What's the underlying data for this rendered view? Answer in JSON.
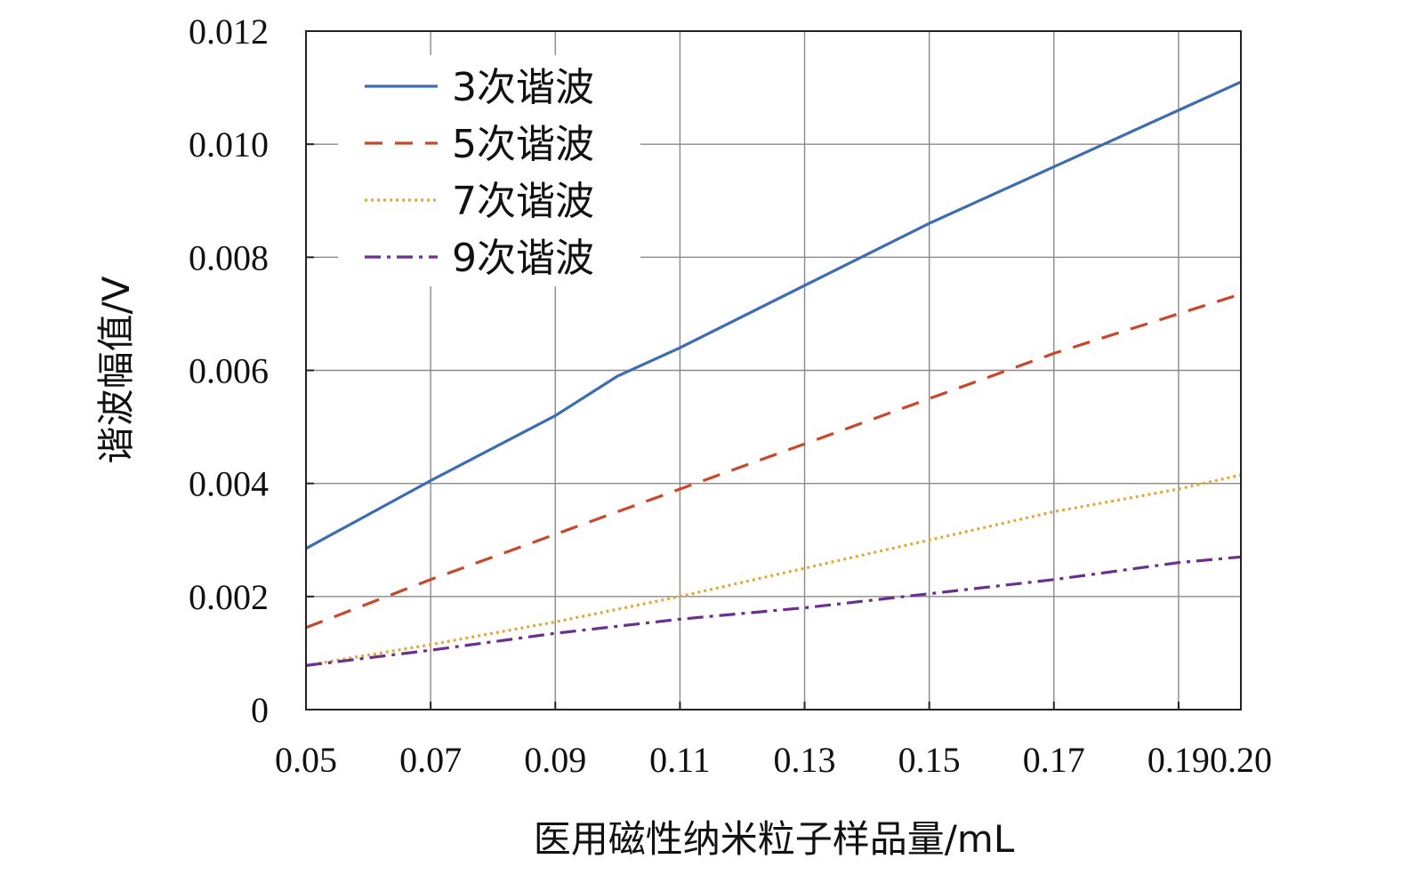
{
  "chart_data": {
    "type": "line",
    "title": "",
    "xlabel": "医用磁性纳米粒子样品量/mL",
    "ylabel": "谐波幅值/V",
    "xlim": [
      0.05,
      0.2
    ],
    "ylim": [
      0,
      0.012
    ],
    "xticks": [
      0.05,
      0.07,
      0.09,
      0.11,
      0.13,
      0.15,
      0.17,
      0.19,
      0.2
    ],
    "xtick_labels": [
      "0.05",
      "0.07",
      "0.09",
      "0.11",
      "0.13",
      "0.15",
      "0.17",
      "0.19",
      "0.20"
    ],
    "yticks": [
      0,
      0.002,
      0.004,
      0.006,
      0.008,
      0.01,
      0.012
    ],
    "ytick_labels": [
      "0",
      "0.002",
      "0.004",
      "0.006",
      "0.008",
      "0.010",
      "0.012"
    ],
    "grid": true,
    "legend_position": "top-left",
    "series": [
      {
        "name": "3次谐波",
        "color": "#3d6cb0",
        "dash": "solid",
        "x": [
          0.05,
          0.07,
          0.09,
          0.1,
          0.11,
          0.13,
          0.15,
          0.17,
          0.19,
          0.2
        ],
        "y": [
          0.00285,
          0.00405,
          0.0052,
          0.0059,
          0.0064,
          0.0075,
          0.0086,
          0.0096,
          0.0106,
          0.0111
        ]
      },
      {
        "name": "5次谐波",
        "color": "#c9472b",
        "dash": "dashed",
        "x": [
          0.05,
          0.07,
          0.09,
          0.11,
          0.13,
          0.15,
          0.17,
          0.19,
          0.2
        ],
        "y": [
          0.00145,
          0.0023,
          0.0031,
          0.0039,
          0.0047,
          0.0055,
          0.0063,
          0.007,
          0.00735
        ]
      },
      {
        "name": "7次谐波",
        "color": "#e0a93c",
        "dash": "dotted",
        "x": [
          0.05,
          0.07,
          0.09,
          0.11,
          0.13,
          0.15,
          0.17,
          0.19,
          0.2
        ],
        "y": [
          0.00078,
          0.00115,
          0.00155,
          0.002,
          0.0025,
          0.003,
          0.0035,
          0.0039,
          0.00415
        ]
      },
      {
        "name": "9次谐波",
        "color": "#6b2f8f",
        "dash": "dashdot",
        "x": [
          0.05,
          0.07,
          0.09,
          0.11,
          0.13,
          0.15,
          0.17,
          0.19,
          0.2
        ],
        "y": [
          0.00078,
          0.00105,
          0.00135,
          0.0016,
          0.0018,
          0.00205,
          0.0023,
          0.0026,
          0.0027
        ]
      }
    ]
  }
}
